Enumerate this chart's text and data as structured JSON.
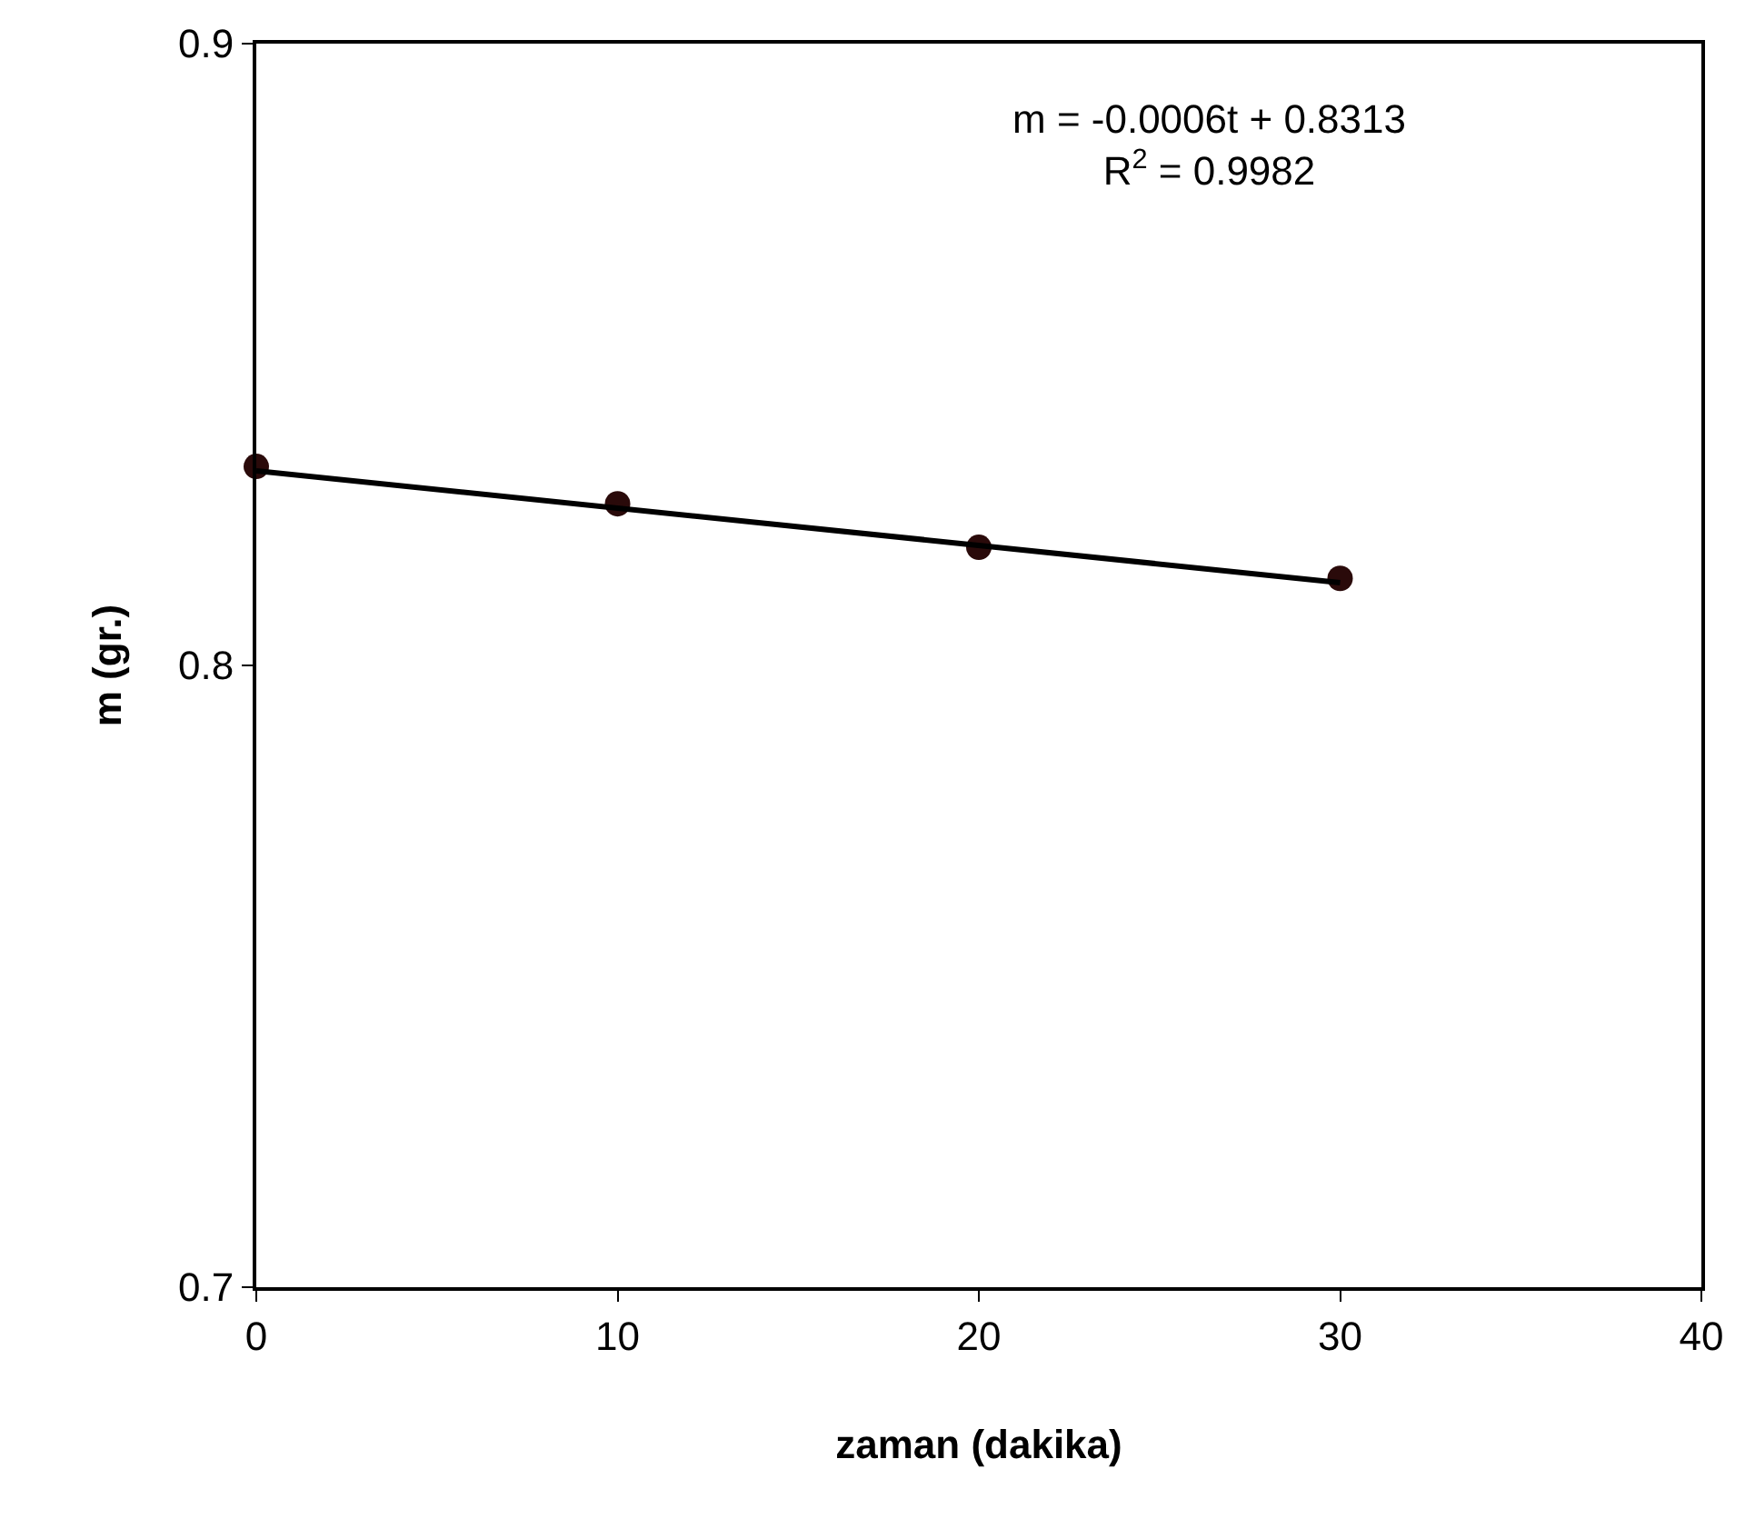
{
  "chart_data": {
    "type": "scatter",
    "xlabel": "zaman (dakika)",
    "ylabel": "m (gr.)",
    "xlim": [
      0,
      40
    ],
    "xticks": [
      0,
      10,
      20,
      30,
      40
    ],
    "ylim": [
      0.7,
      0.9
    ],
    "yticks": [
      0.7,
      0.8,
      0.9
    ],
    "legend": false,
    "series": [
      {
        "marker": "circle",
        "color": "#2a0a0a",
        "x": [
          0,
          10,
          20,
          30
        ],
        "values": [
          0.832,
          0.826,
          0.819,
          0.814
        ]
      },
      {
        "type": "line",
        "color": "#000000",
        "x": [
          0,
          30
        ],
        "values": [
          0.8313,
          0.8133
        ],
        "line_style": "solid"
      }
    ],
    "annotations": [
      "m = -0.0006t + 0.8313",
      "R$^{2}$ = 0.9982"
    ]
  }
}
